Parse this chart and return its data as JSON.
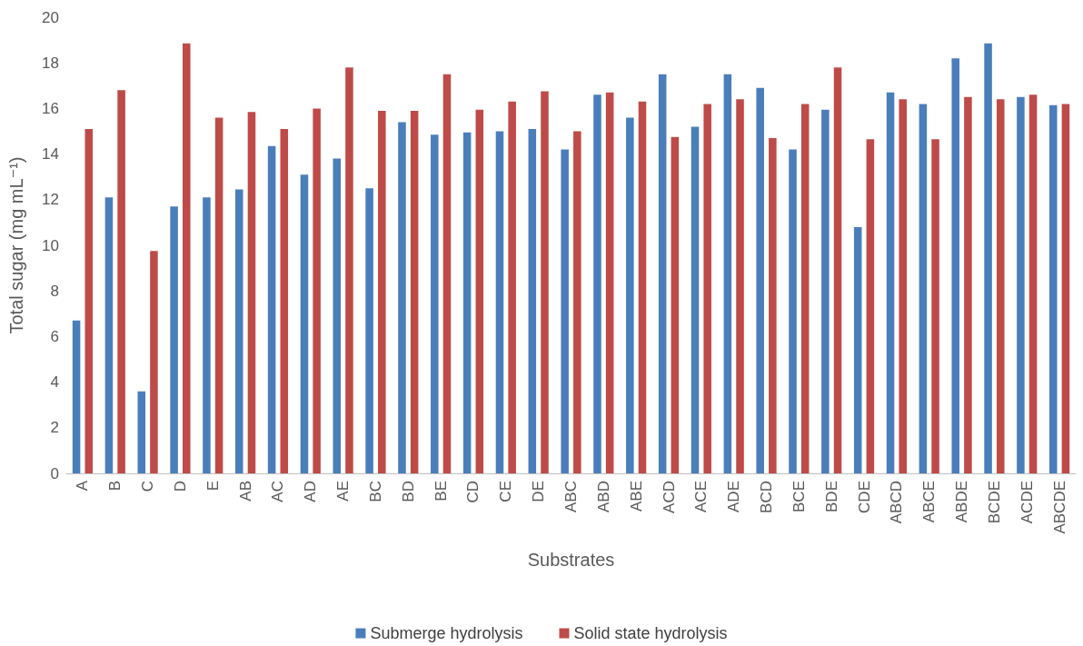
{
  "chart_data": {
    "type": "bar",
    "xlabel": "Substrates",
    "ylabel": "Total sugar (mg mL⁻¹)",
    "categories": [
      "A",
      "B",
      "C",
      "D",
      "E",
      "AB",
      "AC",
      "AD",
      "AE",
      "BC",
      "BD",
      "BE",
      "CD",
      "CE",
      "DE",
      "ABC",
      "ABD",
      "ABE",
      "ACD",
      "ACE",
      "ADE",
      "BCD",
      "BCE",
      "BDE",
      "CDE",
      "ABCD",
      "ABCE",
      "ABDE",
      "BCDE",
      "ACDE",
      "ABCDE"
    ],
    "series": [
      {
        "name": "Submerge hydrolysis",
        "color": "#4a7ebb",
        "values": [
          6.7,
          12.1,
          3.6,
          11.7,
          12.1,
          12.45,
          14.35,
          13.1,
          13.8,
          12.5,
          15.4,
          14.85,
          14.95,
          15.0,
          15.1,
          14.2,
          16.6,
          15.6,
          17.5,
          15.2,
          17.5,
          16.9,
          14.2,
          15.95,
          10.8,
          16.7,
          16.2,
          18.2,
          18.85,
          16.5,
          16.15
        ]
      },
      {
        "name": "Solid state hydrolysis",
        "color": "#be4b48",
        "values": [
          15.1,
          16.8,
          9.75,
          18.85,
          15.6,
          15.85,
          15.1,
          16.0,
          17.8,
          15.9,
          15.9,
          17.5,
          15.95,
          16.3,
          16.75,
          15.0,
          16.7,
          16.3,
          14.75,
          16.2,
          16.4,
          14.7,
          16.2,
          17.8,
          14.65,
          16.4,
          14.65,
          16.5,
          16.4,
          16.6,
          16.2
        ]
      }
    ],
    "ylim": [
      0,
      20
    ],
    "yticks": [
      0,
      2,
      4,
      6,
      8,
      10,
      12,
      14,
      16,
      18,
      20
    ],
    "grid": false,
    "legend": "bottom"
  }
}
